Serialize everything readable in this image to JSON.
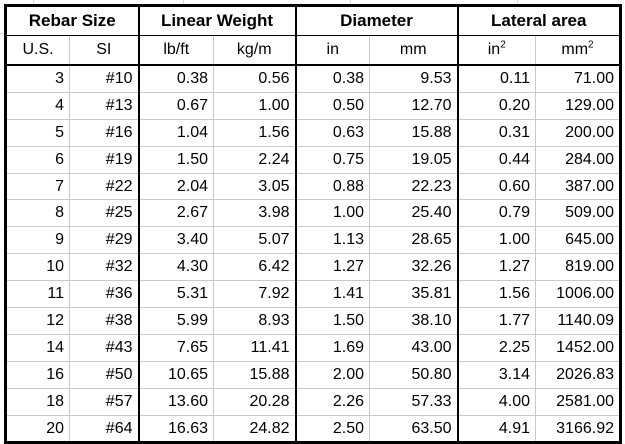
{
  "table": {
    "groups": [
      {
        "label": "Rebar Size"
      },
      {
        "label": "Linear Weight"
      },
      {
        "label": "Diameter"
      },
      {
        "label": "Lateral area"
      }
    ],
    "subheaders": [
      {
        "label": "U.S."
      },
      {
        "label": "SI"
      },
      {
        "label": "lb/ft"
      },
      {
        "label": "kg/m"
      },
      {
        "label": "in"
      },
      {
        "label": "mm"
      },
      {
        "base": "in",
        "sup": "2"
      },
      {
        "base": "mm",
        "sup": "2"
      }
    ],
    "rows": [
      [
        "3",
        "#10",
        "0.38",
        "0.56",
        "0.38",
        "9.53",
        "0.11",
        "71.00"
      ],
      [
        "4",
        "#13",
        "0.67",
        "1.00",
        "0.50",
        "12.70",
        "0.20",
        "129.00"
      ],
      [
        "5",
        "#16",
        "1.04",
        "1.56",
        "0.63",
        "15.88",
        "0.31",
        "200.00"
      ],
      [
        "6",
        "#19",
        "1.50",
        "2.24",
        "0.75",
        "19.05",
        "0.44",
        "284.00"
      ],
      [
        "7",
        "#22",
        "2.04",
        "3.05",
        "0.88",
        "22.23",
        "0.60",
        "387.00"
      ],
      [
        "8",
        "#25",
        "2.67",
        "3.98",
        "1.00",
        "25.40",
        "0.79",
        "509.00"
      ],
      [
        "9",
        "#29",
        "3.40",
        "5.07",
        "1.13",
        "28.65",
        "1.00",
        "645.00"
      ],
      [
        "10",
        "#32",
        "4.30",
        "6.42",
        "1.27",
        "32.26",
        "1.27",
        "819.00"
      ],
      [
        "11",
        "#36",
        "5.31",
        "7.92",
        "1.41",
        "35.81",
        "1.56",
        "1006.00"
      ],
      [
        "12",
        "#38",
        "5.99",
        "8.93",
        "1.50",
        "38.10",
        "1.77",
        "1140.09"
      ],
      [
        "14",
        "#43",
        "7.65",
        "11.41",
        "1.69",
        "43.00",
        "2.25",
        "1452.00"
      ],
      [
        "16",
        "#50",
        "10.65",
        "15.88",
        "2.00",
        "50.80",
        "3.14",
        "2026.83"
      ],
      [
        "18",
        "#57",
        "13.60",
        "20.28",
        "2.26",
        "57.33",
        "4.00",
        "2581.00"
      ],
      [
        "20",
        "#64",
        "16.63",
        "24.82",
        "2.50",
        "63.50",
        "4.91",
        "3166.92"
      ]
    ],
    "colors": {
      "border": "#000000",
      "gridline": "#c9c9c9",
      "outside_gridline": "#d9d9d9",
      "background": "#ffffff",
      "text": "#000000"
    }
  }
}
